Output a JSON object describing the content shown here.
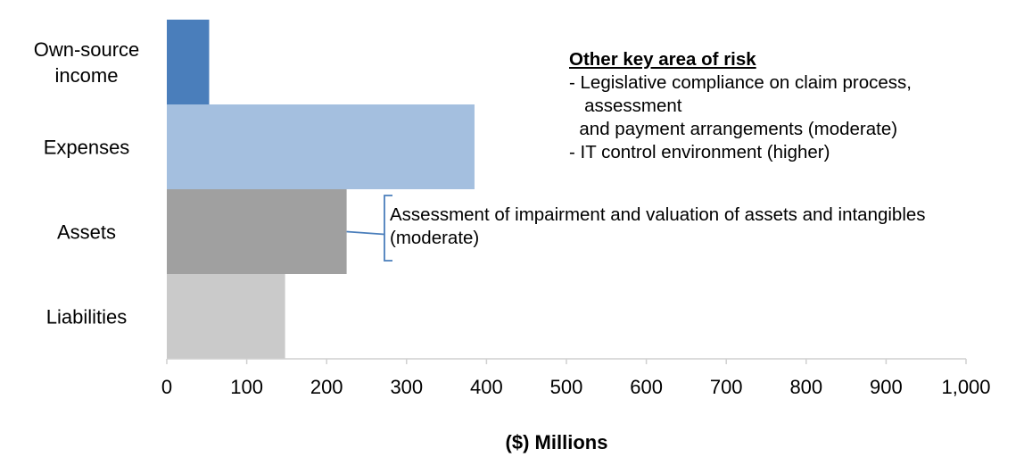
{
  "chart_data": {
    "type": "bar",
    "orientation": "horizontal",
    "categories": [
      "Own-source income",
      "Expenses",
      "Assets",
      "Liabilities"
    ],
    "category_display": [
      [
        "Own-source",
        "income"
      ],
      [
        "Expenses"
      ],
      [
        "Assets"
      ],
      [
        "Liabilities"
      ]
    ],
    "values": [
      53,
      385,
      225,
      148
    ],
    "colors": [
      "#4a7ebb",
      "#a4bfdf",
      "#a0a0a0",
      "#cacaca"
    ],
    "xlabel": "($) Millions",
    "xlim": [
      0,
      1000
    ],
    "xticks": [
      0,
      100,
      200,
      300,
      400,
      500,
      600,
      700,
      800,
      900,
      1000
    ],
    "xtick_labels": [
      "0",
      "100",
      "200",
      "300",
      "400",
      "500",
      "600",
      "700",
      "800",
      "900",
      "1,000"
    ],
    "grid": false,
    "legend": "none"
  },
  "annotations": {
    "risk_box": {
      "title": "Other key area of risk",
      "lines": [
        "- Legislative compliance on claim process,",
        "   assessment",
        "  and payment arrangements (moderate)",
        "- IT control environment (higher)"
      ]
    },
    "assets_note": {
      "lines": [
        "Assessment of impairment and valuation of assets and intangibles",
        "(moderate)"
      ]
    },
    "bracket_color": "#4a7ebb"
  }
}
